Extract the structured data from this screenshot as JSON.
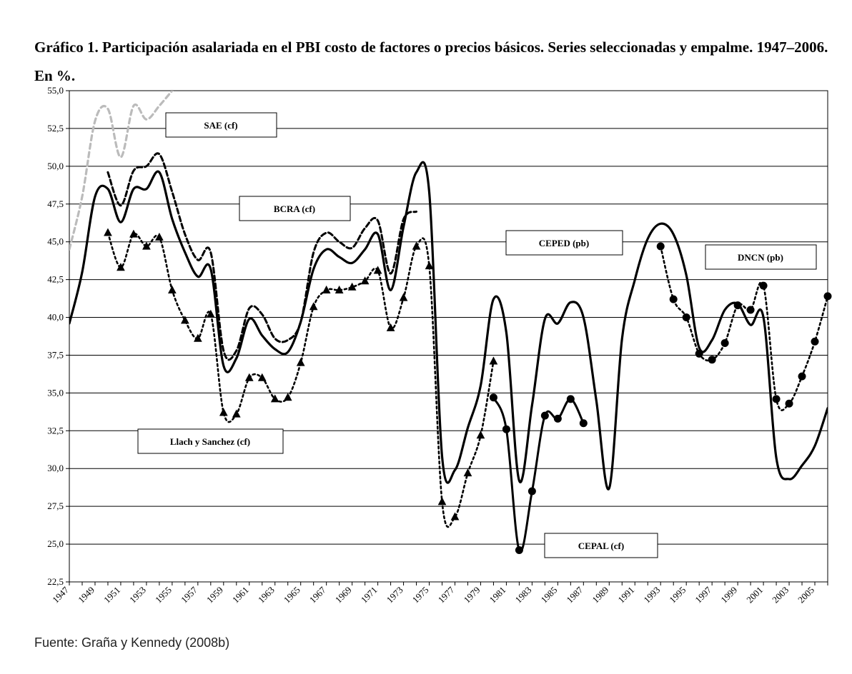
{
  "title": "Gráfico 1. Participación asalariada en el PBI costo de factores o precios básicos. Series seleccionadas y empalme. 1947–2006. En %.",
  "source": "Fuente: Graña y Kennedy (2008b)",
  "chart_data": {
    "type": "line",
    "title": "Gráfico 1. Participación asalariada en el PBI costo de factores o precios básicos. Series seleccionadas y empalme. 1947–2006. En %.",
    "xlabel": "",
    "ylabel": "",
    "xlim": [
      1947,
      2006
    ],
    "ylim": [
      22.5,
      55.0
    ],
    "y_ticks": [
      22.5,
      25.0,
      27.5,
      30.0,
      32.5,
      35.0,
      37.5,
      40.0,
      42.5,
      45.0,
      47.5,
      50.0,
      52.5,
      55.0
    ],
    "y_tick_labels": [
      "22,5",
      "25,0",
      "27,5",
      "30,0",
      "32,5",
      "35,0",
      "37,5",
      "40,0",
      "42,5",
      "45,0",
      "47,5",
      "50,0",
      "52,5",
      "55,0"
    ],
    "x_tick_labels": [
      "1947",
      "1949",
      "1951",
      "1953",
      "1955",
      "1957",
      "1959",
      "1961",
      "1963",
      "1965",
      "1967",
      "1969",
      "1971",
      "1973",
      "1975",
      "1977",
      "1979",
      "1981",
      "1983",
      "1985",
      "1987",
      "1989",
      "1991",
      "1993",
      "1995",
      "1997",
      "1999",
      "2001",
      "2003",
      "2005"
    ],
    "grid": "horizontal",
    "series": [
      {
        "name": "Empalme",
        "style": "solid",
        "color": "#000000",
        "x": [
          1947,
          1948,
          1949,
          1950,
          1951,
          1952,
          1953,
          1954,
          1955,
          1956,
          1957,
          1958,
          1959,
          1960,
          1961,
          1962,
          1963,
          1964,
          1965,
          1966,
          1967,
          1968,
          1969,
          1970,
          1971,
          1972,
          1973,
          1974,
          1975,
          1976,
          1977,
          1978,
          1979,
          1980,
          1981,
          1982,
          1983,
          1984,
          1985,
          1986,
          1987,
          1988,
          1989,
          1990,
          1991,
          1992,
          1993,
          1994,
          1995,
          1996,
          1997,
          1998,
          1999,
          2000,
          2001,
          2002,
          2003,
          2004,
          2005,
          2006
        ],
        "values": [
          39.6,
          43.0,
          48.0,
          48.5,
          46.3,
          48.5,
          48.5,
          49.6,
          46.5,
          44.3,
          42.7,
          43.2,
          36.8,
          37.3,
          39.9,
          38.8,
          37.9,
          37.7,
          39.7,
          43.2,
          44.5,
          44.0,
          43.6,
          44.5,
          45.5,
          41.8,
          46.0,
          49.6,
          48.3,
          30.8,
          29.9,
          32.7,
          35.5,
          41.2,
          39.0,
          29.2,
          34.2,
          39.9,
          39.6,
          41.0,
          40.0,
          34.5,
          28.7,
          38.6,
          42.5,
          45.2,
          46.2,
          45.5,
          42.8,
          38.0,
          38.5,
          40.5,
          40.9,
          39.5,
          40.0,
          30.7,
          29.3,
          30.2,
          31.5,
          34.0
        ]
      },
      {
        "name": "SAE (cf)",
        "style": "dashed-grey",
        "color": "#bbbbbb",
        "x": [
          1947,
          1948,
          1949,
          1950,
          1951,
          1952,
          1953,
          1954,
          1955
        ],
        "values": [
          44.5,
          48.0,
          53.0,
          53.8,
          50.6,
          54.0,
          53.1,
          54.0,
          55.0
        ]
      },
      {
        "name": "BCRA (cf)",
        "style": "dashed",
        "color": "#000000",
        "x": [
          1950,
          1951,
          1952,
          1953,
          1954,
          1955,
          1956,
          1957,
          1958,
          1959,
          1960,
          1961,
          1962,
          1963,
          1964,
          1965,
          1966,
          1967,
          1968,
          1969,
          1970,
          1971,
          1972,
          1973,
          1974
        ],
        "values": [
          49.6,
          47.4,
          49.7,
          50.0,
          50.8,
          48.3,
          45.5,
          43.8,
          44.3,
          37.8,
          37.8,
          40.6,
          40.2,
          38.6,
          38.5,
          39.7,
          44.3,
          45.6,
          45.0,
          44.6,
          45.9,
          46.4,
          42.9,
          46.5,
          47.0
        ]
      },
      {
        "name": "Llach y Sanchez (cf)",
        "style": "dotted-triangle",
        "color": "#000000",
        "x": [
          1950,
          1951,
          1952,
          1953,
          1954,
          1955,
          1956,
          1957,
          1958,
          1959,
          1960,
          1961,
          1962,
          1963,
          1964,
          1965,
          1966,
          1967,
          1968,
          1969,
          1970,
          1971,
          1972,
          1973,
          1974,
          1975,
          1976,
          1977,
          1978,
          1979,
          1980
        ],
        "values": [
          45.6,
          43.3,
          45.5,
          44.7,
          45.3,
          41.8,
          39.8,
          38.6,
          40.2,
          33.7,
          33.6,
          36.0,
          36.0,
          34.6,
          34.7,
          37.0,
          40.7,
          41.8,
          41.8,
          42.0,
          42.4,
          43.1,
          39.3,
          41.3,
          44.7,
          43.4,
          27.8,
          26.8,
          29.7,
          32.2,
          37.1
        ]
      },
      {
        "name": "CEPAL (cf)",
        "style": "solid-dot",
        "color": "#000000",
        "x": [
          1980,
          1981,
          1982,
          1983,
          1984,
          1985,
          1986,
          1987
        ],
        "values": [
          34.7,
          32.6,
          24.6,
          28.5,
          33.5,
          33.3,
          34.6,
          33.0
        ]
      },
      {
        "name": "DNCN (pb)",
        "style": "dotted-dot",
        "color": "#000000",
        "x": [
          1993,
          1994,
          1995,
          1996,
          1997,
          1998,
          1999,
          2000,
          2001,
          2002,
          2003,
          2004,
          2005,
          2006
        ],
        "values": [
          44.7,
          41.2,
          40.0,
          37.6,
          37.2,
          38.3,
          40.8,
          40.5,
          42.1,
          34.6,
          34.3,
          36.1,
          38.4,
          41.4
        ]
      }
    ],
    "annotations": [
      {
        "text": "SAE (cf)"
      },
      {
        "text": "BCRA (cf)"
      },
      {
        "text": "CEPED (pb)"
      },
      {
        "text": "DNCN (pb)"
      },
      {
        "text": "Llach y Sanchez (cf)"
      },
      {
        "text": "CEPAL (cf)"
      }
    ]
  }
}
